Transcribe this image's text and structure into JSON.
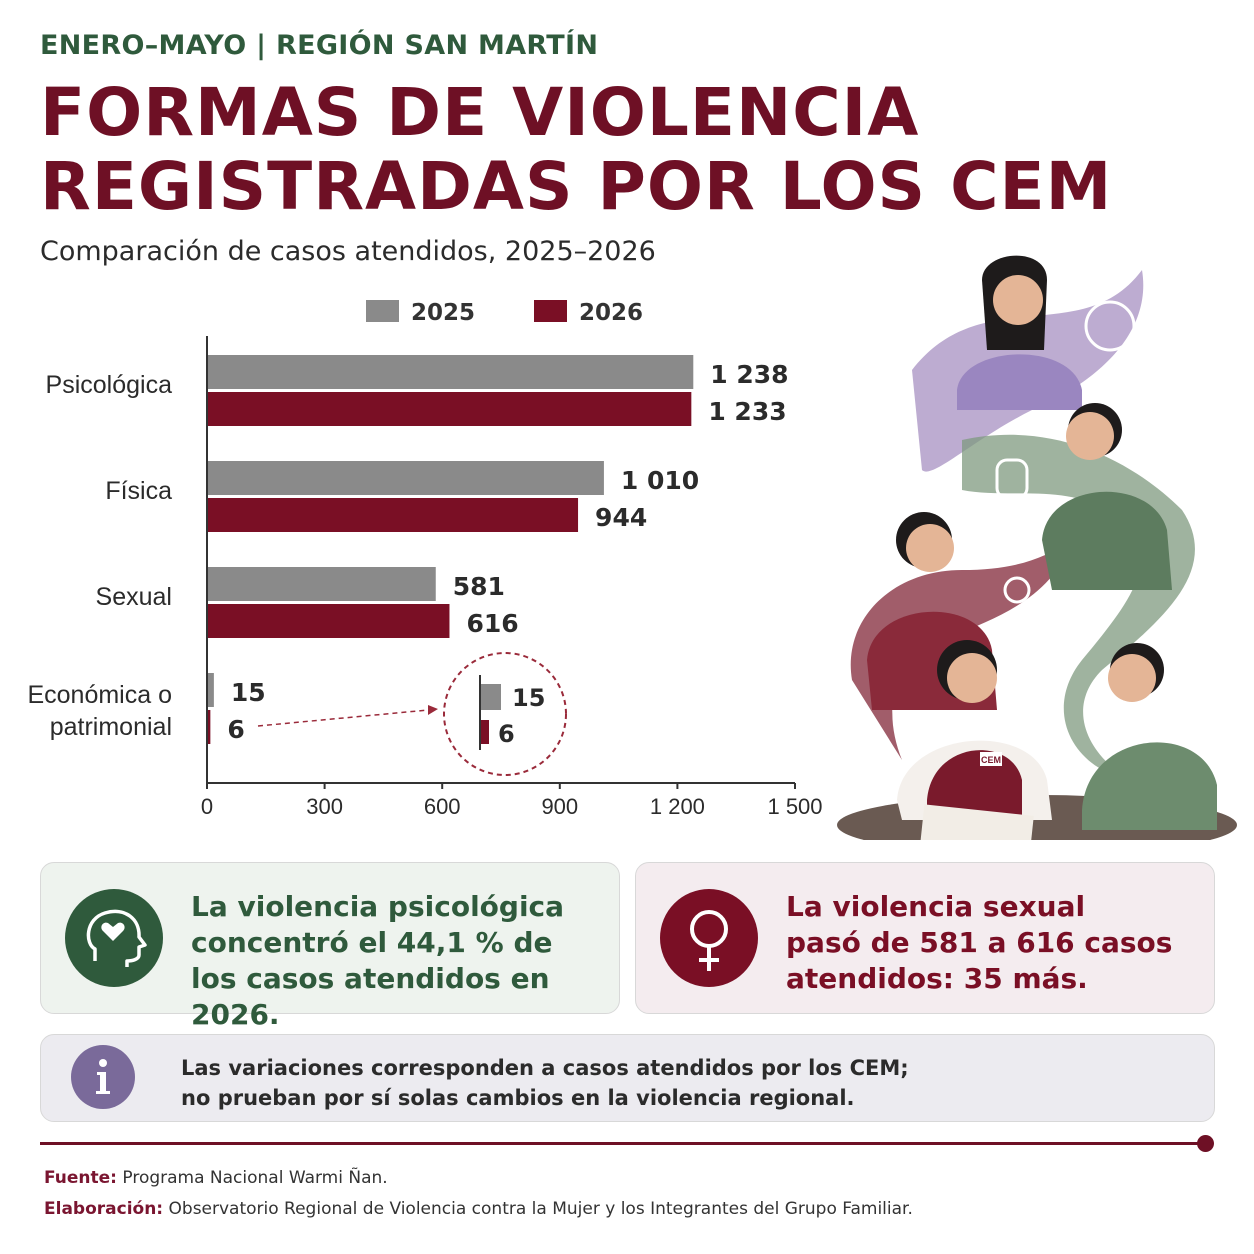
{
  "header": {
    "kicker": "ENERO–MAYO | REGIÓN SAN MARTÍN",
    "title_line1": "FORMAS DE VIOLENCIA",
    "title_line2": "REGISTRADAS POR LOS CEM",
    "subtitle": "Comparación de casos atendidos, 2025–2026"
  },
  "colors": {
    "series_2025": "#8a8a8a",
    "series_2026": "#7a0f25",
    "green": "#2f5a3c",
    "purple": "#7a6a9a"
  },
  "chart_data": {
    "type": "bar",
    "orientation": "horizontal",
    "categories": [
      "Psicológica",
      "Física",
      "Sexual",
      "Económica o patrimonial"
    ],
    "series": [
      {
        "name": "2025",
        "values": [
          1238,
          1010,
          581,
          15
        ],
        "labels": [
          "1 238",
          "1 010",
          "581",
          "15"
        ]
      },
      {
        "name": "2026",
        "values": [
          1233,
          944,
          616,
          6
        ],
        "labels": [
          "1 233",
          "944",
          "616",
          "6"
        ]
      }
    ],
    "xlim": [
      0,
      1500
    ],
    "xticks": [
      "0",
      "300",
      "600",
      "900",
      "1 200",
      "1 500"
    ],
    "legend": "top",
    "grid": false,
    "inset": {
      "labels": [
        "15",
        "6"
      ]
    }
  },
  "cards": {
    "psych": "La violencia psicológica concentró el 44,1 % de los casos atendidos en 2026.",
    "psych_lines": [
      "La violencia psicológica",
      "concentró el 44,1 % de",
      "los casos atendidos en 2026."
    ],
    "sexual_lines": [
      "La violencia sexual",
      "pasó de 581 a 616 casos",
      "atendidos: 35 más."
    ],
    "info_lines": [
      "Las variaciones corresponden a casos atendidos por los CEM;",
      "no prueban por sí solas cambios en la violencia regional."
    ]
  },
  "illustration": {
    "badge": "CEM"
  },
  "footer": {
    "source_label": "Fuente:",
    "source": "Programa Nacional Warmi Ñan.",
    "credit_label": "Elaboración:",
    "credit": "Observatorio Regional de Violencia contra la Mujer y los Integrantes del Grupo Familiar."
  }
}
